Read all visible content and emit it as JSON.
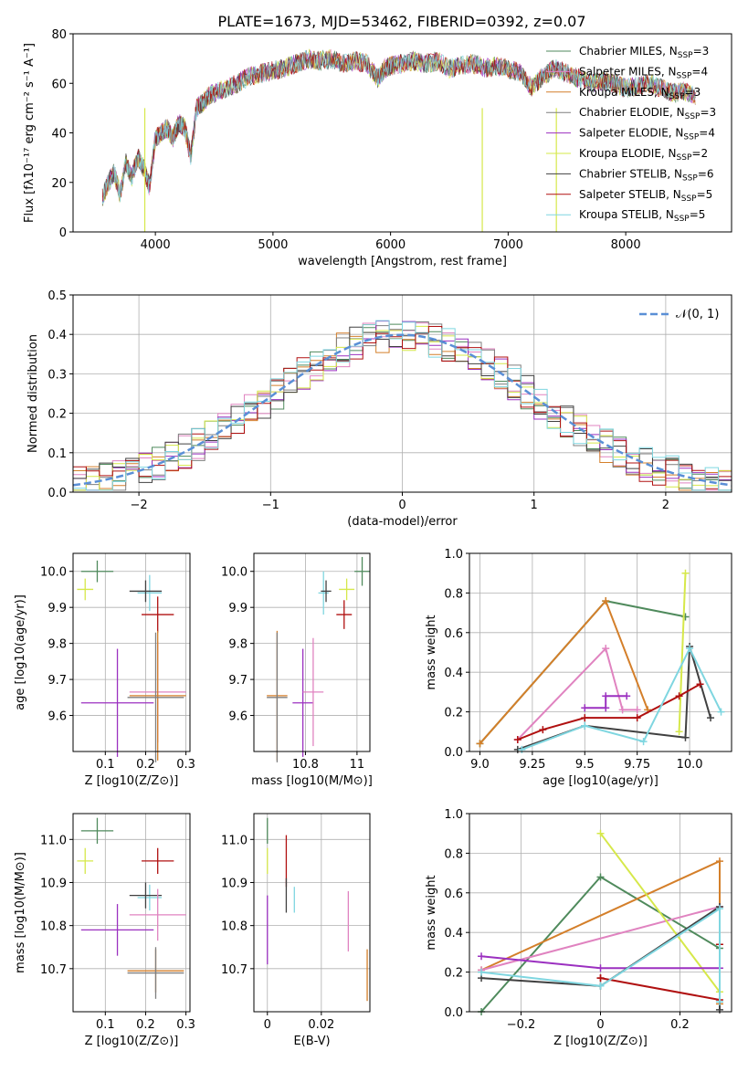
{
  "figure_title": "PLATE=1673, MJD=53462, FIBERID=0392, z=0.07",
  "models": [
    {
      "name": "Chabrier MILES",
      "nssp": "3",
      "color": "#4f8a5c"
    },
    {
      "name": "Salpeter MILES",
      "nssp": "4",
      "color": "#e083c0"
    },
    {
      "name": "Kroupa MILES",
      "nssp": "3",
      "color": "#d47f2a"
    },
    {
      "name": "Chabrier ELODIE",
      "nssp": "3",
      "color": "#7f7f7f"
    },
    {
      "name": "Salpeter ELODIE",
      "nssp": "4",
      "color": "#9b30c0"
    },
    {
      "name": "Kroupa ELODIE",
      "nssp": "2",
      "color": "#d6e84a"
    },
    {
      "name": "Chabrier STELIB",
      "nssp": "6",
      "color": "#404040"
    },
    {
      "name": "Salpeter STELIB",
      "nssp": "5",
      "color": "#b01010"
    },
    {
      "name": "Kroupa STELIB",
      "nssp": "5",
      "color": "#7fd6e0"
    }
  ],
  "chart_data": [
    {
      "id": "spectrum",
      "type": "line",
      "xlabel": "wavelength [Angstrom, rest frame]",
      "ylabel": "Flux [fλ10⁻¹⁷ erg cm⁻² s⁻¹ A⁻¹]",
      "xlim": [
        3300,
        8900
      ],
      "ylim": [
        0,
        80
      ],
      "xticks": [
        4000,
        5000,
        6000,
        7000,
        8000
      ],
      "yticks": [
        0,
        20,
        40,
        60,
        80
      ],
      "x": [
        3550,
        3600,
        3650,
        3700,
        3750,
        3800,
        3850,
        3900,
        3950,
        4000,
        4050,
        4100,
        4150,
        4200,
        4250,
        4300,
        4350,
        4400,
        4450,
        4500,
        4600,
        4700,
        4800,
        4900,
        5000,
        5100,
        5200,
        5300,
        5400,
        5500,
        5600,
        5700,
        5800,
        5890,
        5950,
        6000,
        6100,
        6200,
        6300,
        6400,
        6500,
        6600,
        6700,
        6800,
        6900,
        7000,
        7100,
        7200,
        7300,
        7400,
        7500,
        7600,
        7700,
        7800,
        7900,
        8000,
        8100,
        8200,
        8300,
        8400,
        8500,
        8600
      ],
      "y": [
        14,
        20,
        24,
        15,
        28,
        22,
        30,
        26,
        18,
        38,
        40,
        42,
        38,
        44,
        42,
        30,
        50,
        52,
        55,
        56,
        58,
        60,
        63,
        64,
        65,
        66,
        68,
        70,
        69,
        70,
        68,
        69,
        68,
        62,
        66,
        67,
        68,
        69,
        68,
        69,
        66,
        67,
        68,
        66,
        67,
        66,
        64,
        58,
        63,
        66,
        64,
        62,
        60,
        61,
        60,
        58,
        59,
        60,
        58,
        56,
        57,
        55
      ],
      "deep_lines": [
        {
          "x": 3910,
          "y": 0
        },
        {
          "x": 6780,
          "y": 0
        },
        {
          "x": 7410,
          "y": 0
        }
      ],
      "legend_position": "top-right"
    },
    {
      "id": "residual_hist",
      "type": "histogram",
      "xlabel": "(data-model)/error",
      "ylabel": "Normed distribution",
      "xlim": [
        -2.5,
        2.5
      ],
      "ylim": [
        0,
        0.5
      ],
      "xticks": [
        -2,
        -1,
        0,
        1,
        2
      ],
      "yticks": [
        0.0,
        0.1,
        0.2,
        0.3,
        0.4,
        0.5
      ],
      "reference_curve": {
        "label": "𝒩(0, 1)",
        "color": "#5a8fd6"
      },
      "bins": [
        -2.5,
        -2.4,
        -2.3,
        -2.2,
        -2.1,
        -2.0,
        -1.9,
        -1.8,
        -1.7,
        -1.6,
        -1.5,
        -1.4,
        -1.3,
        -1.2,
        -1.1,
        -1.0,
        -0.9,
        -0.8,
        -0.7,
        -0.6,
        -0.5,
        -0.4,
        -0.3,
        -0.2,
        -0.1,
        0.0,
        0.1,
        0.2,
        0.3,
        0.4,
        0.5,
        0.6,
        0.7,
        0.8,
        0.9,
        1.0,
        1.1,
        1.2,
        1.3,
        1.4,
        1.5,
        1.6,
        1.7,
        1.8,
        1.9,
        2.0,
        2.1,
        2.2,
        2.3,
        2.4,
        2.5
      ],
      "legend_position": "top-right"
    },
    {
      "id": "age_vs_Z",
      "type": "errorbar",
      "xlabel": "Z [log10(Z/Z⊙)]",
      "ylabel": "age  [log10(age/yr)]",
      "xlim": [
        0.02,
        0.31
      ],
      "ylim": [
        9.5,
        10.05
      ],
      "xticks": [
        0.1,
        0.2,
        0.3
      ],
      "yticks": [
        9.6,
        9.7,
        9.8,
        9.9,
        10.0
      ],
      "points": [
        {
          "model": 0,
          "x": 0.08,
          "xerr": 0.04,
          "y": 10.0,
          "yerr": 0.03
        },
        {
          "model": 5,
          "x": 0.05,
          "xerr": 0.02,
          "y": 9.95,
          "yerr": 0.03
        },
        {
          "model": 8,
          "x": 0.21,
          "xerr": 0.03,
          "y": 9.94,
          "yerr": 0.05
        },
        {
          "model": 6,
          "x": 0.2,
          "xerr": 0.04,
          "y": 9.945,
          "yerr": 0.03
        },
        {
          "model": 7,
          "x": 0.23,
          "xerr": 0.04,
          "y": 9.88,
          "yerr": 0.05
        },
        {
          "model": 4,
          "x": 0.13,
          "xerr": 0.09,
          "y": 9.635,
          "yerr": 0.15
        },
        {
          "model": 1,
          "x": 0.23,
          "xerr": 0.07,
          "y": 9.665,
          "yerr": 0.14
        },
        {
          "model": 2,
          "x": 0.23,
          "xerr": 0.07,
          "y": 9.655,
          "yerr": 0.18
        },
        {
          "model": 3,
          "x": 0.225,
          "xerr": 0.07,
          "y": 9.65,
          "yerr": 0.18
        }
      ]
    },
    {
      "id": "age_vs_mass",
      "type": "errorbar",
      "xlabel": "mass [log10(M/M⊙)]",
      "ylabel": "",
      "xlim": [
        10.6,
        11.05
      ],
      "ylim": [
        9.5,
        10.05
      ],
      "xticks": [
        10.8,
        11.0
      ],
      "yticks": [
        9.6,
        9.7,
        9.8,
        9.9,
        10.0
      ],
      "points": [
        {
          "model": 0,
          "x": 11.02,
          "xerr": 0.03,
          "y": 10.0,
          "yerr": 0.04
        },
        {
          "model": 5,
          "x": 10.96,
          "xerr": 0.03,
          "y": 9.95,
          "yerr": 0.03
        },
        {
          "model": 8,
          "x": 10.87,
          "xerr": 0.02,
          "y": 9.94,
          "yerr": 0.06
        },
        {
          "model": 6,
          "x": 10.88,
          "xerr": 0.02,
          "y": 9.945,
          "yerr": 0.03
        },
        {
          "model": 7,
          "x": 10.95,
          "xerr": 0.03,
          "y": 9.88,
          "yerr": 0.04
        },
        {
          "model": 4,
          "x": 10.79,
          "xerr": 0.04,
          "y": 9.635,
          "yerr": 0.15
        },
        {
          "model": 1,
          "x": 10.83,
          "xerr": 0.04,
          "y": 9.665,
          "yerr": 0.15
        },
        {
          "model": 2,
          "x": 10.69,
          "xerr": 0.04,
          "y": 9.655,
          "yerr": 0.18
        },
        {
          "model": 3,
          "x": 10.69,
          "xerr": 0.04,
          "y": 9.65,
          "yerr": 0.18
        }
      ]
    },
    {
      "id": "massweight_vs_age",
      "type": "line",
      "xlabel": "age  [log10(age/yr)]",
      "ylabel": "mass weight",
      "xlim": [
        8.95,
        10.2
      ],
      "ylim": [
        0,
        1.0
      ],
      "xticks": [
        9.0,
        9.25,
        9.5,
        9.75,
        10.0
      ],
      "xticklabels": [
        "9.0",
        "9.25",
        "9.5",
        "9.75",
        "10.0"
      ],
      "yticks": [
        0.0,
        0.2,
        0.4,
        0.6,
        0.8,
        1.0
      ],
      "series": [
        {
          "model": 0,
          "x": [
            9.0,
            9.6,
            9.98
          ],
          "y": [
            0.04,
            0.76,
            0.68
          ]
        },
        {
          "model": 2,
          "x": [
            9.0,
            9.6,
            9.8
          ],
          "y": [
            0.04,
            0.76,
            0.21
          ]
        },
        {
          "model": 1,
          "x": [
            9.18,
            9.6,
            9.68,
            9.75
          ],
          "y": [
            0.06,
            0.52,
            0.21,
            0.21
          ]
        },
        {
          "model": 5,
          "x": [
            9.95,
            9.98
          ],
          "y": [
            0.1,
            0.9
          ]
        },
        {
          "model": 4,
          "x": [
            9.5,
            9.6,
            9.6,
            9.7
          ],
          "y": [
            0.22,
            0.22,
            0.28,
            0.28
          ]
        },
        {
          "model": 6,
          "x": [
            9.18,
            9.5,
            9.98,
            10.0,
            10.1
          ],
          "y": [
            0.01,
            0.13,
            0.07,
            0.53,
            0.17
          ]
        },
        {
          "model": 7,
          "x": [
            9.18,
            9.3,
            9.5,
            9.75,
            9.95,
            10.05
          ],
          "y": [
            0.06,
            0.11,
            0.17,
            0.17,
            0.28,
            0.34
          ]
        },
        {
          "model": 8,
          "x": [
            9.2,
            9.5,
            9.78,
            10.0,
            10.15
          ],
          "y": [
            0.01,
            0.13,
            0.05,
            0.52,
            0.2
          ]
        }
      ]
    },
    {
      "id": "mass_vs_Z",
      "type": "errorbar",
      "xlabel": "Z [log10(Z/Z⊙)]",
      "ylabel": "mass [log10(M/M⊙)]",
      "xlim": [
        0.02,
        0.31
      ],
      "ylim": [
        10.6,
        11.06
      ],
      "xticks": [
        0.1,
        0.2,
        0.3
      ],
      "yticks": [
        10.7,
        10.8,
        10.9,
        11.0
      ],
      "points": [
        {
          "model": 0,
          "x": 0.08,
          "xerr": 0.04,
          "y": 11.02,
          "yerr": 0.03
        },
        {
          "model": 5,
          "x": 0.05,
          "xerr": 0.02,
          "y": 10.95,
          "yerr": 0.03
        },
        {
          "model": 7,
          "x": 0.23,
          "xerr": 0.04,
          "y": 10.95,
          "yerr": 0.03
        },
        {
          "model": 8,
          "x": 0.21,
          "xerr": 0.03,
          "y": 10.865,
          "yerr": 0.03
        },
        {
          "model": 6,
          "x": 0.2,
          "xerr": 0.04,
          "y": 10.87,
          "yerr": 0.03
        },
        {
          "model": 1,
          "x": 0.23,
          "xerr": 0.07,
          "y": 10.825,
          "yerr": 0.06
        },
        {
          "model": 4,
          "x": 0.13,
          "xerr": 0.09,
          "y": 10.79,
          "yerr": 0.06
        },
        {
          "model": 2,
          "x": 0.225,
          "xerr": 0.07,
          "y": 10.695,
          "yerr": 0.05
        },
        {
          "model": 3,
          "x": 0.225,
          "xerr": 0.07,
          "y": 10.69,
          "yerr": 0.06
        }
      ]
    },
    {
      "id": "mass_vs_ebv",
      "type": "errorbar",
      "xlabel": "E(B-V)",
      "ylabel": "",
      "xlim": [
        -0.005,
        0.038
      ],
      "ylim": [
        10.6,
        11.06
      ],
      "xticks": [
        0.0,
        0.02
      ],
      "yticks": [
        10.7,
        10.8,
        10.9,
        11.0
      ],
      "points": [
        {
          "model": 0,
          "x": 0.0,
          "xerr": 0,
          "y": 11.02,
          "yerr": 0.03
        },
        {
          "model": 5,
          "x": 0.0,
          "xerr": 0,
          "y": 10.95,
          "yerr": 0.03
        },
        {
          "model": 4,
          "x": 0.0,
          "xerr": 0,
          "y": 10.79,
          "yerr": 0.08
        },
        {
          "model": 7,
          "x": 0.007,
          "xerr": 0,
          "y": 10.95,
          "yerr": 0.06
        },
        {
          "model": 6,
          "x": 0.007,
          "xerr": 0,
          "y": 10.87,
          "yerr": 0.04
        },
        {
          "model": 8,
          "x": 0.01,
          "xerr": 0,
          "y": 10.86,
          "yerr": 0.03
        },
        {
          "model": 1,
          "x": 0.03,
          "xerr": 0,
          "y": 10.81,
          "yerr": 0.07
        },
        {
          "model": 2,
          "x": 0.037,
          "xerr": 0,
          "y": 10.685,
          "yerr": 0.06
        }
      ]
    },
    {
      "id": "massweight_vs_Z",
      "type": "line",
      "xlabel": "Z [log10(Z/Z⊙)]",
      "ylabel": "mass weight",
      "xlim": [
        -0.33,
        0.33
      ],
      "ylim": [
        0,
        1.0
      ],
      "xticks": [
        -0.2,
        0.0,
        0.2
      ],
      "yticks": [
        0.0,
        0.2,
        0.4,
        0.6,
        0.8,
        1.0
      ],
      "series": [
        {
          "model": 0,
          "x": [
            -0.3,
            0.0,
            0.3
          ],
          "y": [
            0.0,
            0.68,
            0.32
          ]
        },
        {
          "model": 2,
          "x": [
            -0.3,
            0.3,
            0.3
          ],
          "y": [
            0.21,
            0.76,
            0.04
          ]
        },
        {
          "model": 1,
          "x": [
            -0.3,
            0.3
          ],
          "y": [
            0.21,
            0.53
          ]
        },
        {
          "model": 5,
          "x": [
            0.0,
            0.3
          ],
          "y": [
            0.9,
            0.1
          ]
        },
        {
          "model": 4,
          "x": [
            -0.3,
            0.0,
            0.3
          ],
          "y": [
            0.28,
            0.22,
            0.22
          ]
        },
        {
          "model": 6,
          "x": [
            -0.3,
            0.0,
            0.3,
            0.3
          ],
          "y": [
            0.17,
            0.13,
            0.53,
            0.01
          ]
        },
        {
          "model": 7,
          "x": [
            0.0,
            0.0,
            0.3,
            0.3
          ],
          "y": [
            0.17,
            0.17,
            0.06,
            0.34
          ]
        },
        {
          "model": 8,
          "x": [
            -0.3,
            0.0,
            0.3,
            0.3
          ],
          "y": [
            0.2,
            0.13,
            0.52,
            0.05
          ]
        }
      ]
    }
  ]
}
